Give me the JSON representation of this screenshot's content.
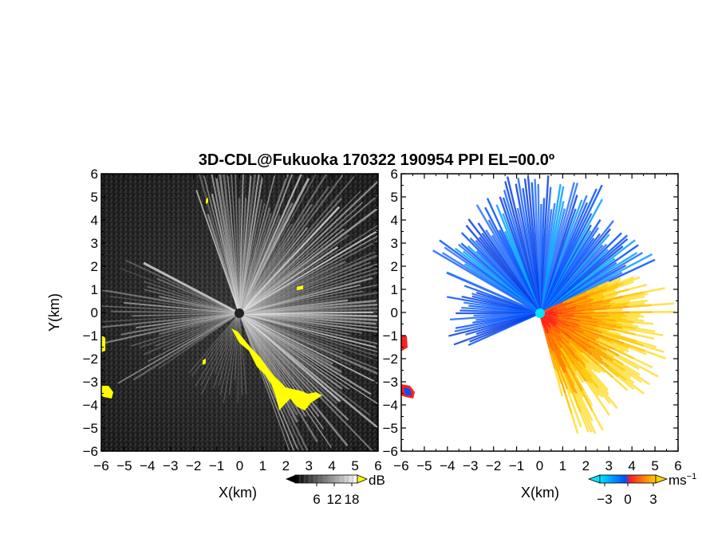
{
  "figure": {
    "title": "3D-CDL@Fukuoka 170322 190954 PPI EL=00.0º"
  },
  "chart_data": [
    {
      "type": "heatmap",
      "panel": "left",
      "xlabel": "X(km)",
      "ylabel": "Y(km)",
      "xlim": [
        -6,
        6
      ],
      "ylim": [
        -6,
        6
      ],
      "x_ticks": [
        -6,
        -5,
        -4,
        -3,
        -2,
        -1,
        0,
        1,
        2,
        3,
        4,
        5,
        6
      ],
      "y_ticks": [
        -6,
        -5,
        -4,
        -3,
        -2,
        -1,
        0,
        1,
        2,
        3,
        4,
        5,
        6
      ],
      "colorbar": {
        "unit": "dB",
        "ticks": [
          6,
          12,
          18
        ],
        "colors": [
          "#000000",
          "#ffffff"
        ],
        "overflow_color": "#ffff00"
      }
    },
    {
      "type": "heatmap",
      "panel": "right",
      "xlabel": "X(km)",
      "ylabel": "",
      "xlim": [
        -6,
        6
      ],
      "ylim": [
        -6,
        6
      ],
      "x_ticks": [
        -6,
        -5,
        -4,
        -3,
        -2,
        -1,
        0,
        1,
        2,
        3,
        4,
        5,
        6
      ],
      "y_ticks": [
        -6,
        -5,
        -4,
        -3,
        -2,
        -1,
        0,
        1,
        2,
        3,
        4,
        5,
        6
      ],
      "colorbar": {
        "unit": "ms",
        "unit_exponent": "−1",
        "ticks": [
          "−3",
          "0",
          "3"
        ],
        "colors": [
          "#00e5ff",
          "#0050ff",
          "#ff2020",
          "#ffd000"
        ]
      }
    }
  ]
}
